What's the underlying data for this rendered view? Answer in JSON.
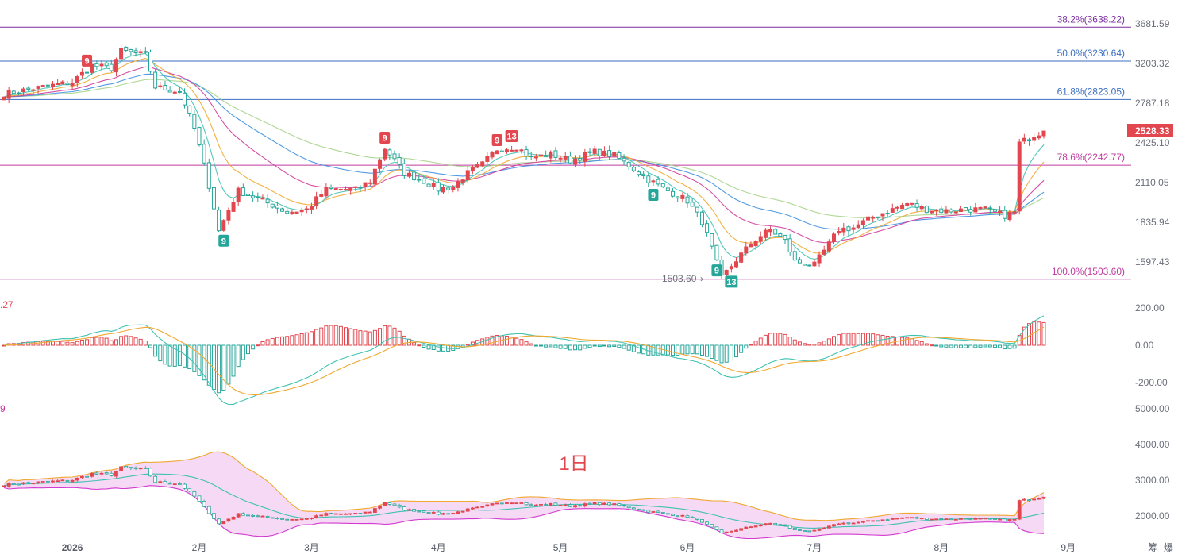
{
  "chart_data": {
    "type": "candlestick",
    "period_label": "1日",
    "colors": {
      "up": "#e2474f",
      "down": "#26a69a",
      "ma_fast": "#3fc2b0",
      "ma_mid": "#f0a830",
      "ma_slow": "#d23b9a",
      "ma_long": "#3e8fe0",
      "ma_longest": "#a6d38a",
      "fib_top": "#7b2f9e",
      "fib_mid": "#3d6fc2",
      "fib_low": "#c03b9f",
      "band_fill": "#f2c9f0",
      "band_upper": "#f0a830",
      "band_lower": "#d23bcf",
      "band_mid": "#3fc2b0"
    },
    "price_axis": {
      "ticks": [
        "3681.59",
        "3203.32",
        "2787.18",
        "2425.10",
        "2110.05",
        "1835.94",
        "1597.43"
      ],
      "tick_values": [
        3681.59,
        3203.32,
        2787.18,
        2425.1,
        2110.05,
        1835.94,
        1597.43
      ],
      "last_price": "2528.33",
      "scale": "log"
    },
    "fib_levels": [
      {
        "label": "38.2%(3638.22)",
        "value": 3638.22
      },
      {
        "label": "50.0%(3230.64)",
        "value": 3230.64
      },
      {
        "label": "61.8%(2823.05)",
        "value": 2823.05
      },
      {
        "label": "78.6%(2242.77)",
        "value": 2242.77
      },
      {
        "label": "100.0%(1503.60)",
        "value": 1503.6
      }
    ],
    "low_marker": "1503.60",
    "months": [
      "2026",
      "2月",
      "3月",
      "4月",
      "5月",
      "6月",
      "7月",
      "8月",
      "9月"
    ],
    "signals": [
      {
        "text": "9",
        "kind": "up",
        "day": 17
      },
      {
        "text": "9",
        "kind": "down",
        "day": 45
      },
      {
        "text": "9",
        "kind": "up",
        "day": 78
      },
      {
        "text": "9",
        "kind": "up",
        "day": 101
      },
      {
        "text": "13",
        "kind": "up",
        "day": 104
      },
      {
        "text": "9",
        "kind": "down",
        "day": 133
      },
      {
        "text": "9",
        "kind": "down",
        "day": 146
      },
      {
        "text": "13",
        "kind": "down",
        "day": 149
      }
    ],
    "macd_axis": {
      "ticks": [
        "200.00",
        "0.00",
        "-200.00"
      ],
      "tick_values": [
        200,
        0,
        -200
      ],
      "left_label": ".27"
    },
    "band_axis": {
      "ticks": [
        "5000.00",
        "4000.00",
        "3000.00",
        "2000.00"
      ],
      "tick_values": [
        5000,
        4000,
        3000,
        2000
      ],
      "left_label": "9"
    },
    "corner_labels": [
      "筹",
      "爆"
    ],
    "anchors": [
      [
        0,
        2880
      ],
      [
        8,
        2950
      ],
      [
        14,
        3000
      ],
      [
        18,
        3180
      ],
      [
        22,
        3150
      ],
      [
        24,
        3350
      ],
      [
        29,
        3300
      ],
      [
        31,
        2950
      ],
      [
        36,
        2900
      ],
      [
        39,
        2550
      ],
      [
        44,
        1780
      ],
      [
        48,
        2050
      ],
      [
        55,
        1950
      ],
      [
        58,
        1900
      ],
      [
        62,
        1920
      ],
      [
        66,
        2060
      ],
      [
        72,
        2060
      ],
      [
        75,
        2120
      ],
      [
        78,
        2380
      ],
      [
        82,
        2180
      ],
      [
        86,
        2120
      ],
      [
        89,
        2060
      ],
      [
        92,
        2080
      ],
      [
        95,
        2180
      ],
      [
        98,
        2250
      ],
      [
        101,
        2370
      ],
      [
        105,
        2390
      ],
      [
        108,
        2300
      ],
      [
        112,
        2330
      ],
      [
        116,
        2280
      ],
      [
        121,
        2350
      ],
      [
        125,
        2320
      ],
      [
        128,
        2240
      ],
      [
        132,
        2130
      ],
      [
        136,
        2050
      ],
      [
        140,
        1980
      ],
      [
        143,
        1840
      ],
      [
        147,
        1510
      ],
      [
        151,
        1640
      ],
      [
        154,
        1730
      ],
      [
        157,
        1790
      ],
      [
        160,
        1720
      ],
      [
        162,
        1600
      ],
      [
        166,
        1580
      ],
      [
        169,
        1700
      ],
      [
        171,
        1790
      ],
      [
        174,
        1800
      ],
      [
        178,
        1870
      ],
      [
        182,
        1920
      ],
      [
        185,
        1960
      ],
      [
        189,
        1920
      ],
      [
        193,
        1910
      ],
      [
        197,
        1920
      ],
      [
        201,
        1920
      ],
      [
        205,
        1880
      ],
      [
        207,
        1900
      ],
      [
        208,
        2420
      ],
      [
        211,
        2490
      ],
      [
        213,
        2528
      ]
    ]
  }
}
